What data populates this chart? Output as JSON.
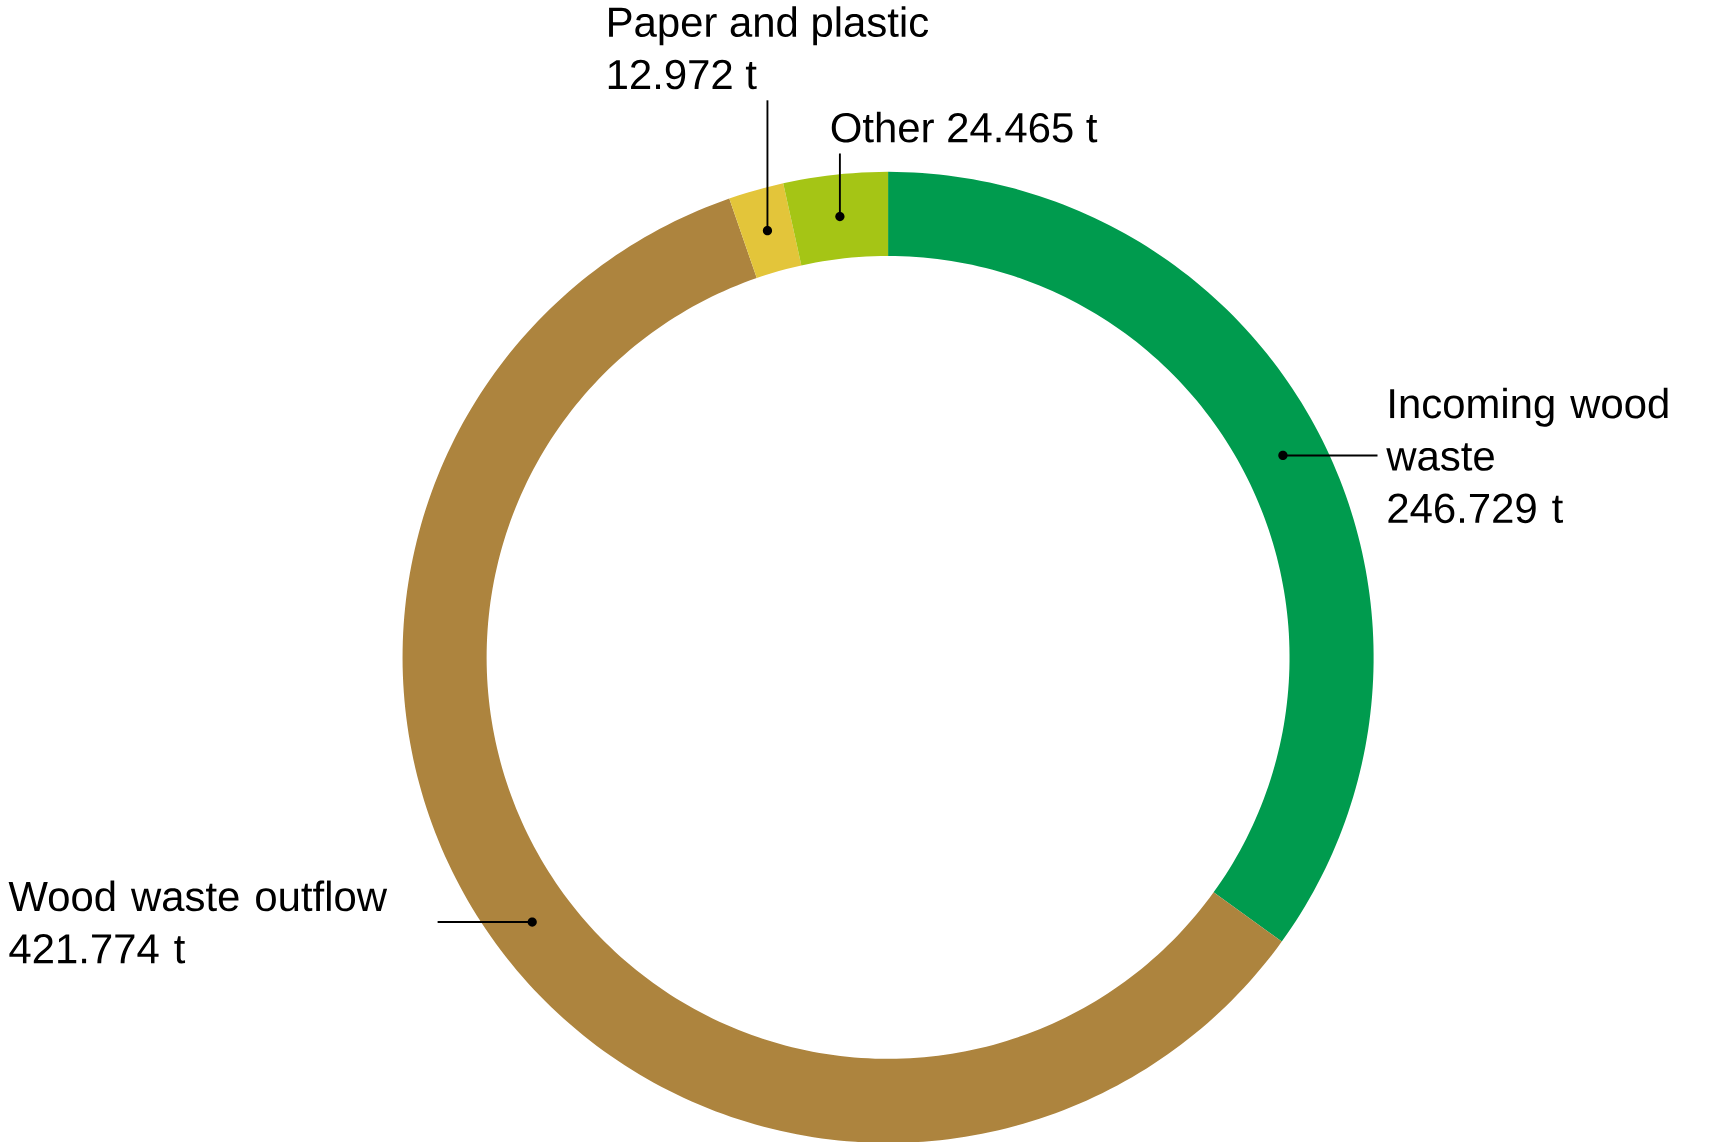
{
  "chart_data": {
    "type": "donut",
    "categories": [
      "Incoming wood waste",
      "Wood waste outflow",
      "Paper and plastic",
      "Other"
    ],
    "values": [
      246.729,
      421.774,
      12.972,
      24.465
    ],
    "value_labels": [
      "246.729 t",
      "421.774 t",
      "12.972 t",
      "24.465 t"
    ],
    "colors": [
      "#009b4e",
      "#ad843e",
      "#e3c53a",
      "#a5c515"
    ]
  }
}
